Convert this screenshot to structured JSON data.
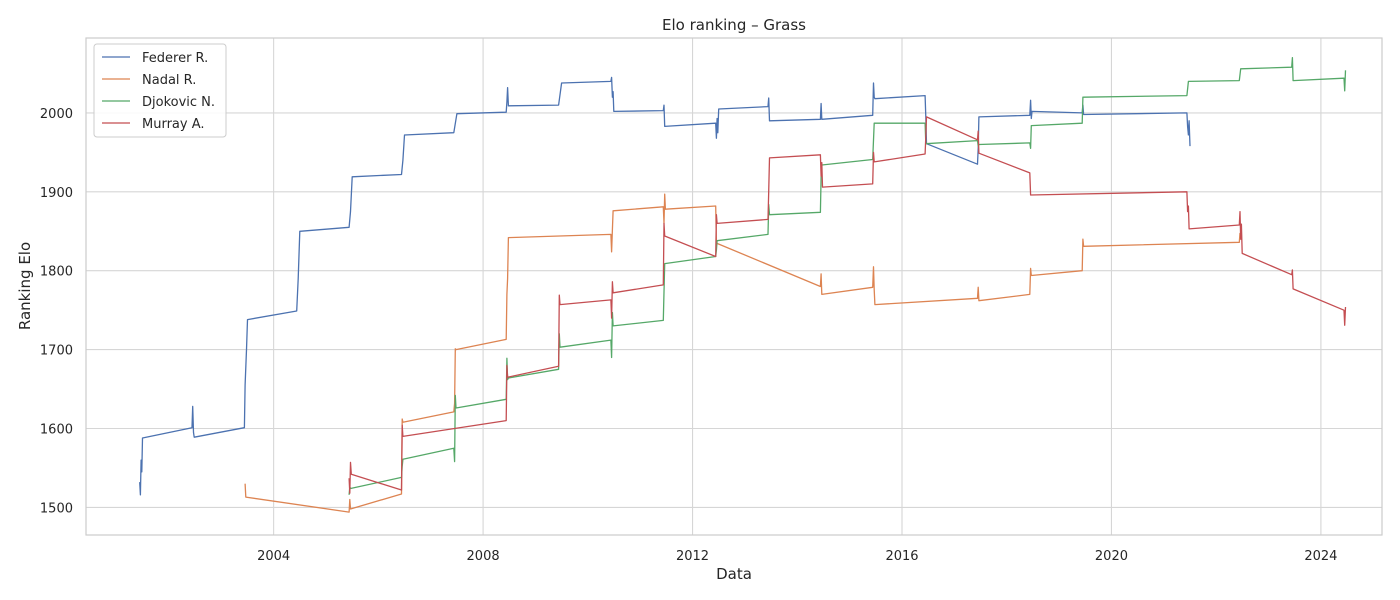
{
  "chart_data": {
    "type": "line",
    "title": "Elo ranking – Grass",
    "xlabel": "Data",
    "ylabel": "Ranking Elo",
    "xlim": [
      "2000-06-01",
      "2025-03-01"
    ],
    "ylim": [
      1465,
      2095
    ],
    "xticks": [
      2004,
      2008,
      2012,
      2016,
      2020,
      2024
    ],
    "yticks": [
      1500,
      1600,
      1700,
      1800,
      1900,
      2000
    ],
    "grid": true,
    "legend": "top-left",
    "series": [
      {
        "name": "Federer R.",
        "color": "#4c72b0",
        "points": [
          [
            "2001-06-10",
            1532
          ],
          [
            "2001-06-15",
            1516
          ],
          [
            "2001-06-20",
            1560
          ],
          [
            "2001-06-25",
            1545
          ],
          [
            "2001-06-30",
            1588
          ],
          [
            "2002-06-10",
            1601
          ],
          [
            "2002-06-15",
            1628
          ],
          [
            "2002-06-20",
            1595
          ],
          [
            "2002-06-25",
            1589
          ],
          [
            "2003-06-10",
            1601
          ],
          [
            "2003-06-15",
            1655
          ],
          [
            "2003-06-25",
            1700
          ],
          [
            "2003-07-01",
            1738
          ],
          [
            "2004-06-10",
            1749
          ],
          [
            "2004-06-20",
            1790
          ],
          [
            "2004-07-01",
            1850
          ],
          [
            "2005-06-10",
            1855
          ],
          [
            "2005-06-20",
            1875
          ],
          [
            "2005-07-01",
            1919
          ],
          [
            "2006-06-10",
            1922
          ],
          [
            "2006-06-20",
            1940
          ],
          [
            "2006-07-01",
            1972
          ],
          [
            "2007-06-10",
            1975
          ],
          [
            "2007-07-01",
            1999
          ],
          [
            "2008-06-10",
            2001
          ],
          [
            "2008-06-15",
            2014
          ],
          [
            "2008-06-20",
            2032
          ],
          [
            "2008-06-25",
            2009
          ],
          [
            "2009-06-10",
            2010
          ],
          [
            "2009-07-01",
            2038
          ],
          [
            "2010-06-10",
            2040
          ],
          [
            "2010-06-15",
            2045
          ],
          [
            "2010-06-20",
            2020
          ],
          [
            "2010-06-25",
            2027
          ],
          [
            "2010-06-30",
            2002
          ],
          [
            "2011-06-10",
            2003
          ],
          [
            "2011-06-15",
            2010
          ],
          [
            "2011-06-20",
            1983
          ],
          [
            "2012-06-10",
            1987
          ],
          [
            "2012-06-15",
            1968
          ],
          [
            "2012-06-20",
            1993
          ],
          [
            "2012-06-25",
            1975
          ],
          [
            "2012-07-01",
            2005
          ],
          [
            "2013-06-10",
            2008
          ],
          [
            "2013-06-15",
            2019
          ],
          [
            "2013-06-20",
            1990
          ],
          [
            "2014-06-10",
            1992
          ],
          [
            "2014-06-15",
            2012
          ],
          [
            "2014-06-20",
            1992
          ],
          [
            "2015-06-10",
            1997
          ],
          [
            "2015-06-15",
            2038
          ],
          [
            "2015-06-20",
            2020
          ],
          [
            "2015-06-25",
            2018
          ],
          [
            "2016-06-10",
            2022
          ],
          [
            "2016-06-15",
            1995
          ],
          [
            "2016-06-20",
            1961
          ],
          [
            "2017-06-10",
            1935
          ],
          [
            "2017-06-15",
            1955
          ],
          [
            "2017-06-20",
            1995
          ],
          [
            "2018-06-10",
            1997
          ],
          [
            "2018-06-15",
            2016
          ],
          [
            "2018-06-20",
            1993
          ],
          [
            "2018-06-25",
            2002
          ],
          [
            "2019-06-10",
            2000
          ],
          [
            "2019-06-15",
            2010
          ],
          [
            "2019-06-20",
            1998
          ],
          [
            "2021-06-10",
            2000
          ],
          [
            "2021-06-15",
            1983
          ],
          [
            "2021-06-20",
            1972
          ],
          [
            "2021-06-25",
            1990
          ],
          [
            "2021-07-01",
            1958
          ]
        ]
      },
      {
        "name": "Nadal R.",
        "color": "#dd8452",
        "points": [
          [
            "2003-06-15",
            1530
          ],
          [
            "2003-06-20",
            1513
          ],
          [
            "2005-06-10",
            1494
          ],
          [
            "2005-06-15",
            1510
          ],
          [
            "2005-06-20",
            1498
          ],
          [
            "2006-06-10",
            1517
          ],
          [
            "2006-06-15",
            1612
          ],
          [
            "2006-06-20",
            1608
          ],
          [
            "2007-06-10",
            1621
          ],
          [
            "2007-06-15",
            1632
          ],
          [
            "2007-06-20",
            1701
          ],
          [
            "2007-06-25",
            1700
          ],
          [
            "2008-06-10",
            1713
          ],
          [
            "2008-06-15",
            1770
          ],
          [
            "2008-06-20",
            1790
          ],
          [
            "2008-06-25",
            1842
          ],
          [
            "2010-06-10",
            1846
          ],
          [
            "2010-06-15",
            1824
          ],
          [
            "2010-06-20",
            1852
          ],
          [
            "2010-06-25",
            1876
          ],
          [
            "2011-06-10",
            1881
          ],
          [
            "2011-06-15",
            1860
          ],
          [
            "2011-06-20",
            1897
          ],
          [
            "2011-06-25",
            1878
          ],
          [
            "2012-06-10",
            1882
          ],
          [
            "2012-06-15",
            1835
          ],
          [
            "2014-06-10",
            1780
          ],
          [
            "2014-06-15",
            1796
          ],
          [
            "2014-06-20",
            1770
          ],
          [
            "2015-06-10",
            1779
          ],
          [
            "2015-06-15",
            1805
          ],
          [
            "2015-06-20",
            1776
          ],
          [
            "2015-06-25",
            1757
          ],
          [
            "2017-06-10",
            1765
          ],
          [
            "2017-06-15",
            1779
          ],
          [
            "2017-06-20",
            1762
          ],
          [
            "2018-06-10",
            1770
          ],
          [
            "2018-06-15",
            1803
          ],
          [
            "2018-06-20",
            1794
          ],
          [
            "2019-06-10",
            1800
          ],
          [
            "2019-06-15",
            1840
          ],
          [
            "2019-06-20",
            1831
          ],
          [
            "2022-06-10",
            1836
          ],
          [
            "2022-06-15",
            1848
          ]
        ]
      },
      {
        "name": "Djokovic N.",
        "color": "#55a868",
        "points": [
          [
            "2005-06-10",
            1516
          ],
          [
            "2005-06-15",
            1526
          ],
          [
            "2005-06-20",
            1524
          ],
          [
            "2006-06-10",
            1538
          ],
          [
            "2006-06-15",
            1552
          ],
          [
            "2006-06-20",
            1561
          ],
          [
            "2007-06-10",
            1575
          ],
          [
            "2007-06-15",
            1558
          ],
          [
            "2007-06-20",
            1642
          ],
          [
            "2007-06-25",
            1626
          ],
          [
            "2008-06-10",
            1637
          ],
          [
            "2008-06-15",
            1689
          ],
          [
            "2008-06-20",
            1662
          ],
          [
            "2008-06-25",
            1664
          ],
          [
            "2009-06-10",
            1675
          ],
          [
            "2009-06-15",
            1720
          ],
          [
            "2009-06-20",
            1703
          ],
          [
            "2010-06-10",
            1712
          ],
          [
            "2010-06-15",
            1690
          ],
          [
            "2010-06-20",
            1747
          ],
          [
            "2010-06-25",
            1730
          ],
          [
            "2011-06-10",
            1737
          ],
          [
            "2011-06-20",
            1809
          ],
          [
            "2012-06-10",
            1818
          ],
          [
            "2012-06-15",
            1826
          ],
          [
            "2012-06-20",
            1838
          ],
          [
            "2013-06-10",
            1846
          ],
          [
            "2013-06-15",
            1884
          ],
          [
            "2013-06-20",
            1871
          ],
          [
            "2014-06-10",
            1874
          ],
          [
            "2014-06-15",
            1919
          ],
          [
            "2014-06-20",
            1934
          ],
          [
            "2015-06-10",
            1941
          ],
          [
            "2015-06-20",
            1987
          ],
          [
            "2016-06-10",
            1987
          ],
          [
            "2016-06-15",
            1961
          ],
          [
            "2017-06-10",
            1965
          ],
          [
            "2017-06-15",
            1958
          ],
          [
            "2017-06-20",
            1960
          ],
          [
            "2018-06-10",
            1962
          ],
          [
            "2018-06-15",
            1955
          ],
          [
            "2018-06-20",
            1984
          ],
          [
            "2019-06-10",
            1987
          ],
          [
            "2019-06-15",
            2020
          ],
          [
            "2021-06-10",
            2022
          ],
          [
            "2021-06-20",
            2040
          ],
          [
            "2022-06-10",
            2041
          ],
          [
            "2022-06-20",
            2056
          ],
          [
            "2023-06-10",
            2058
          ],
          [
            "2023-06-15",
            2070
          ],
          [
            "2023-06-20",
            2041
          ],
          [
            "2024-06-10",
            2044
          ],
          [
            "2024-06-15",
            2028
          ],
          [
            "2024-06-20",
            2054
          ]
        ]
      },
      {
        "name": "Murray A.",
        "color": "#c44e52",
        "points": [
          [
            "2005-06-10",
            1537
          ],
          [
            "2005-06-15",
            1518
          ],
          [
            "2005-06-20",
            1557
          ],
          [
            "2005-06-25",
            1542
          ],
          [
            "2006-06-10",
            1522
          ],
          [
            "2006-06-15",
            1604
          ],
          [
            "2006-06-20",
            1590
          ],
          [
            "2008-06-10",
            1610
          ],
          [
            "2008-06-15",
            1680
          ],
          [
            "2008-06-20",
            1665
          ],
          [
            "2009-06-10",
            1679
          ],
          [
            "2009-06-15",
            1769
          ],
          [
            "2009-06-20",
            1757
          ],
          [
            "2010-06-10",
            1763
          ],
          [
            "2010-06-15",
            1740
          ],
          [
            "2010-06-20",
            1786
          ],
          [
            "2010-06-25",
            1772
          ],
          [
            "2011-06-10",
            1782
          ],
          [
            "2011-06-15",
            1860
          ],
          [
            "2011-06-20",
            1844
          ],
          [
            "2012-06-10",
            1818
          ],
          [
            "2012-06-15",
            1871
          ],
          [
            "2012-06-20",
            1860
          ],
          [
            "2013-06-10",
            1865
          ],
          [
            "2013-06-15",
            1900
          ],
          [
            "2013-06-20",
            1943
          ],
          [
            "2014-06-10",
            1947
          ],
          [
            "2014-06-15",
            1920
          ],
          [
            "2014-06-20",
            1937
          ],
          [
            "2014-06-25",
            1906
          ],
          [
            "2015-06-10",
            1910
          ],
          [
            "2015-06-15",
            1950
          ],
          [
            "2015-06-20",
            1938
          ],
          [
            "2016-06-10",
            1948
          ],
          [
            "2016-06-15",
            1970
          ],
          [
            "2016-06-20",
            1995
          ],
          [
            "2017-06-10",
            1966
          ],
          [
            "2017-06-15",
            1977
          ],
          [
            "2017-06-20",
            1949
          ],
          [
            "2018-06-10",
            1924
          ],
          [
            "2018-06-15",
            1896
          ],
          [
            "2021-06-10",
            1900
          ],
          [
            "2021-06-15",
            1875
          ],
          [
            "2021-06-20",
            1882
          ],
          [
            "2021-06-25",
            1853
          ],
          [
            "2022-06-10",
            1858
          ],
          [
            "2022-06-15",
            1875
          ],
          [
            "2022-06-20",
            1840
          ],
          [
            "2022-06-25",
            1859
          ],
          [
            "2022-06-30",
            1822
          ],
          [
            "2023-06-10",
            1795
          ],
          [
            "2023-06-15",
            1801
          ],
          [
            "2023-06-20",
            1777
          ],
          [
            "2024-06-10",
            1750
          ],
          [
            "2024-06-15",
            1731
          ],
          [
            "2024-06-20",
            1754
          ]
        ]
      }
    ]
  }
}
